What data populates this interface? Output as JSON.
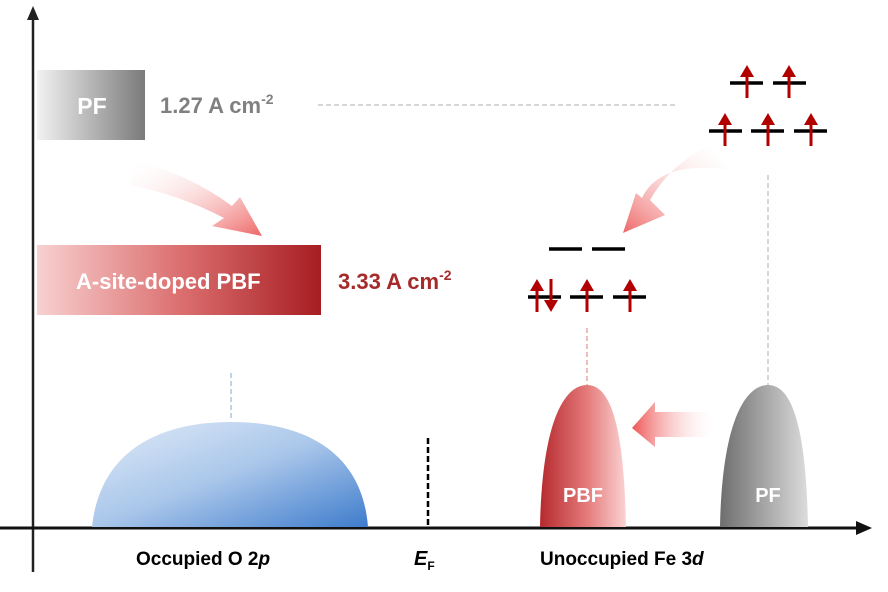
{
  "legend": {
    "pf_box_label": "PF",
    "pf_current": "1.27 A cm",
    "pf_current_exp": "-2",
    "pbf_box_label": "A-site-doped PBF",
    "pbf_current": "3.33 A cm",
    "pbf_current_exp": "-2"
  },
  "peaks": {
    "pbf_label": "PBF",
    "pf_label": "PF"
  },
  "axis_labels": {
    "occupied_main": "Occupied O 2",
    "occupied_italic": "p",
    "fermi_main": "E",
    "fermi_sub": "F",
    "unoccupied_main": "Unoccupied Fe 3",
    "unoccupied_italic": "d"
  },
  "colors": {
    "pf_gray": "#808080",
    "pbf_red": "#a52a2a",
    "spin_arrow": "#b00000",
    "o2p_blue": "#4a86cf"
  }
}
